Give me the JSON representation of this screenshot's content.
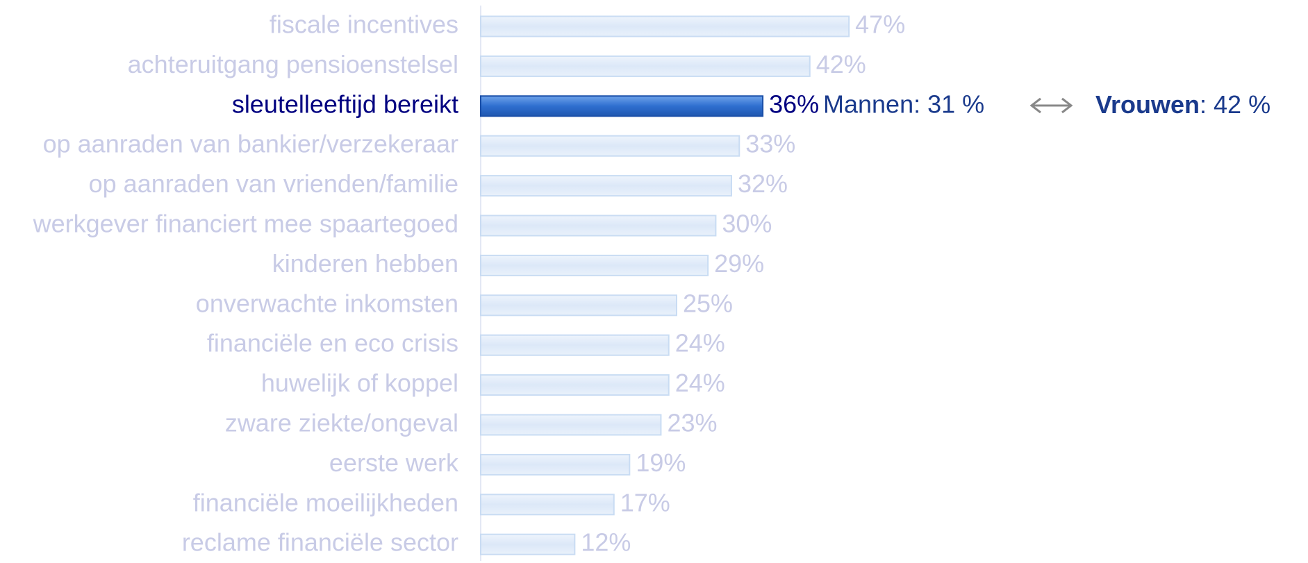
{
  "chart_data": {
    "type": "bar",
    "orientation": "horizontal",
    "categories": [
      "fiscale incentives",
      "achteruitgang pensioenstelsel",
      "sleutelleeftijd bereikt",
      "op aanraden van bankier/verzekeraar",
      "op aanraden van vrienden/familie",
      "werkgever financiert mee spaartegoed",
      "kinderen hebben",
      "onverwachte inkomsten",
      "financiële en eco crisis",
      "huwelijk of koppel",
      "zware ziekte/ongeval",
      "eerste werk",
      "financiële moeilijkheden",
      "reclame financiële sector"
    ],
    "values": [
      47,
      42,
      36,
      33,
      32,
      30,
      29,
      25,
      24,
      24,
      23,
      19,
      17,
      12
    ],
    "value_labels": [
      "47%",
      "42%",
      "36%",
      "33%",
      "32%",
      "30%",
      "29%",
      "25%",
      "24%",
      "24%",
      "23%",
      "19%",
      "17%",
      "12%"
    ],
    "xlim": [
      0,
      50
    ],
    "color": "#dce8f8",
    "highlight_index": 2,
    "highlight_color": "#2f6fd0",
    "annotation": {
      "men": "Mannen: 31 %",
      "women_label": "Vrouwen",
      "women_value": ": 42 %"
    }
  }
}
